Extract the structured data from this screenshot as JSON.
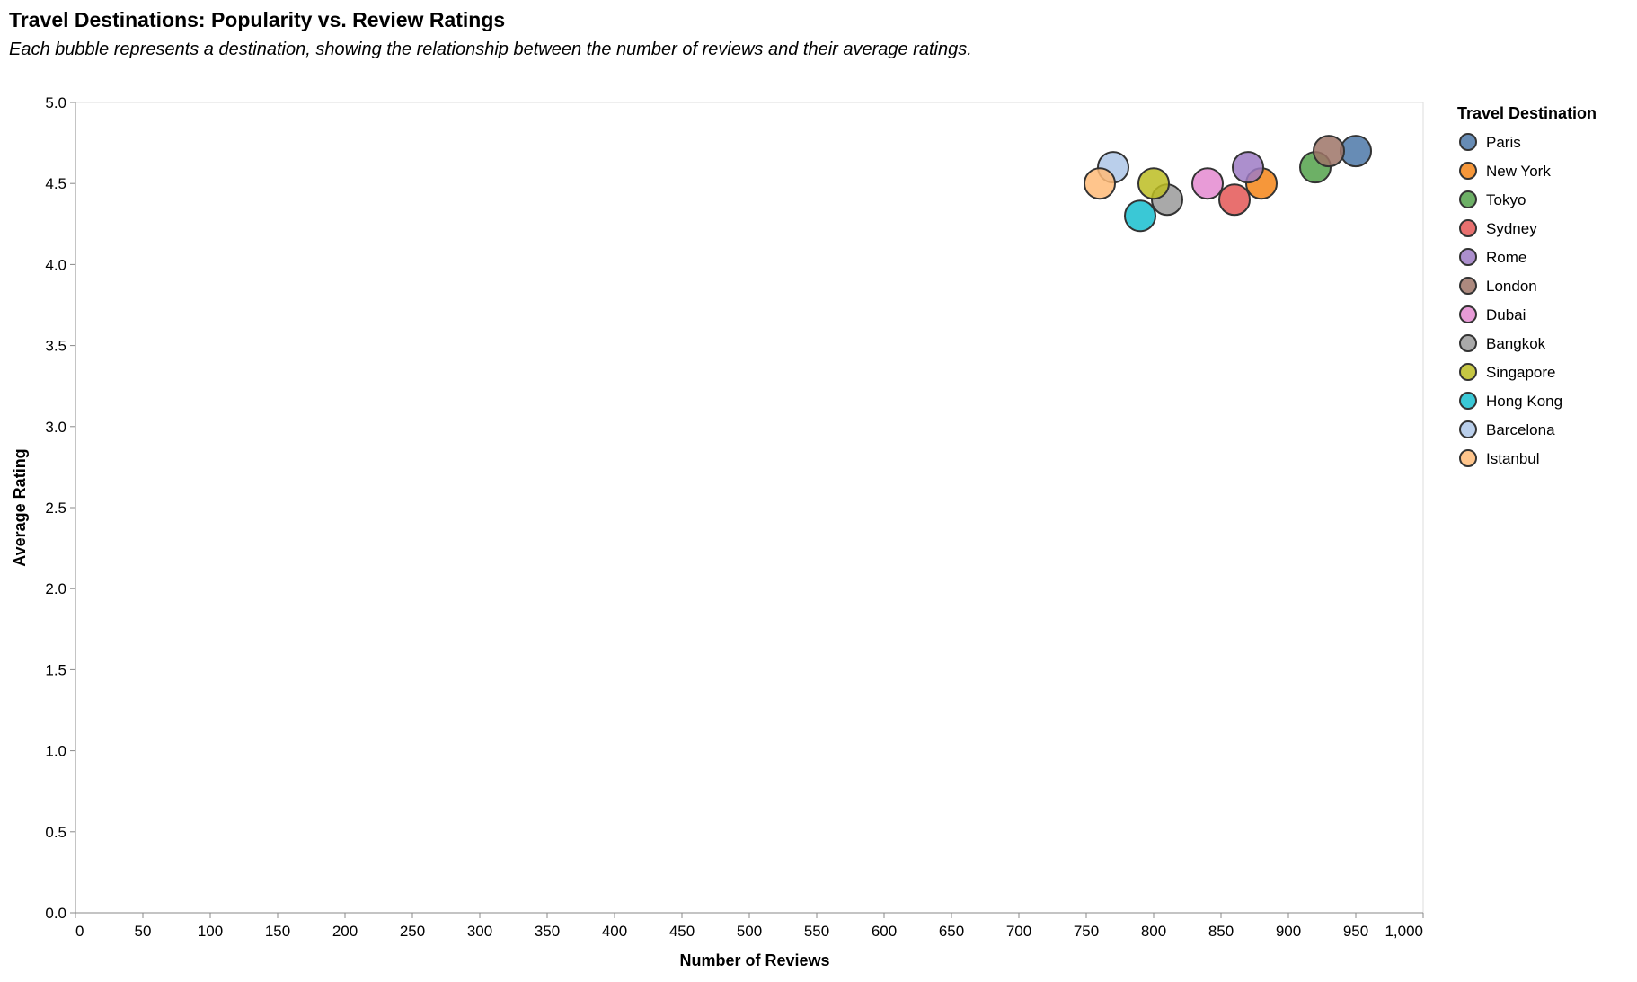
{
  "chart_data": {
    "type": "scatter",
    "title": "Travel Destinations: Popularity vs. Review Ratings",
    "subtitle": "Each bubble represents a destination, showing the relationship between the number of reviews and their average ratings.",
    "xlabel": "Number of Reviews",
    "ylabel": "Average Rating",
    "xlim": [
      0,
      1000
    ],
    "ylim": [
      0,
      5
    ],
    "x_ticks": [
      "0",
      "50",
      "100",
      "150",
      "200",
      "250",
      "300",
      "350",
      "400",
      "450",
      "500",
      "550",
      "600",
      "650",
      "700",
      "750",
      "800",
      "850",
      "900",
      "950",
      "1,000"
    ],
    "y_ticks": [
      "0.0",
      "0.5",
      "1.0",
      "1.5",
      "2.0",
      "2.5",
      "3.0",
      "3.5",
      "4.0",
      "4.5",
      "5.0"
    ],
    "grid": false,
    "legend": {
      "title": "Travel Destination",
      "placement": "right"
    },
    "series": [
      {
        "name": "Paris",
        "x": 950,
        "y": 4.7,
        "color": "#4c78a8"
      },
      {
        "name": "New York",
        "x": 880,
        "y": 4.5,
        "color": "#f58518"
      },
      {
        "name": "Tokyo",
        "x": 920,
        "y": 4.6,
        "color": "#54a24b"
      },
      {
        "name": "Sydney",
        "x": 860,
        "y": 4.4,
        "color": "#e45756"
      },
      {
        "name": "Rome",
        "x": 870,
        "y": 4.6,
        "color": "#9e7bc4"
      },
      {
        "name": "London",
        "x": 930,
        "y": 4.7,
        "color": "#9d7467"
      },
      {
        "name": "Dubai",
        "x": 840,
        "y": 4.5,
        "color": "#e48ad0"
      },
      {
        "name": "Bangkok",
        "x": 810,
        "y": 4.4,
        "color": "#9a9a9a"
      },
      {
        "name": "Singapore",
        "x": 800,
        "y": 4.5,
        "color": "#bcbd22"
      },
      {
        "name": "Hong Kong",
        "x": 790,
        "y": 4.3,
        "color": "#17becf"
      },
      {
        "name": "Barcelona",
        "x": 770,
        "y": 4.6,
        "color": "#aec7e8"
      },
      {
        "name": "Istanbul",
        "x": 760,
        "y": 4.5,
        "color": "#ffbb78"
      }
    ]
  }
}
